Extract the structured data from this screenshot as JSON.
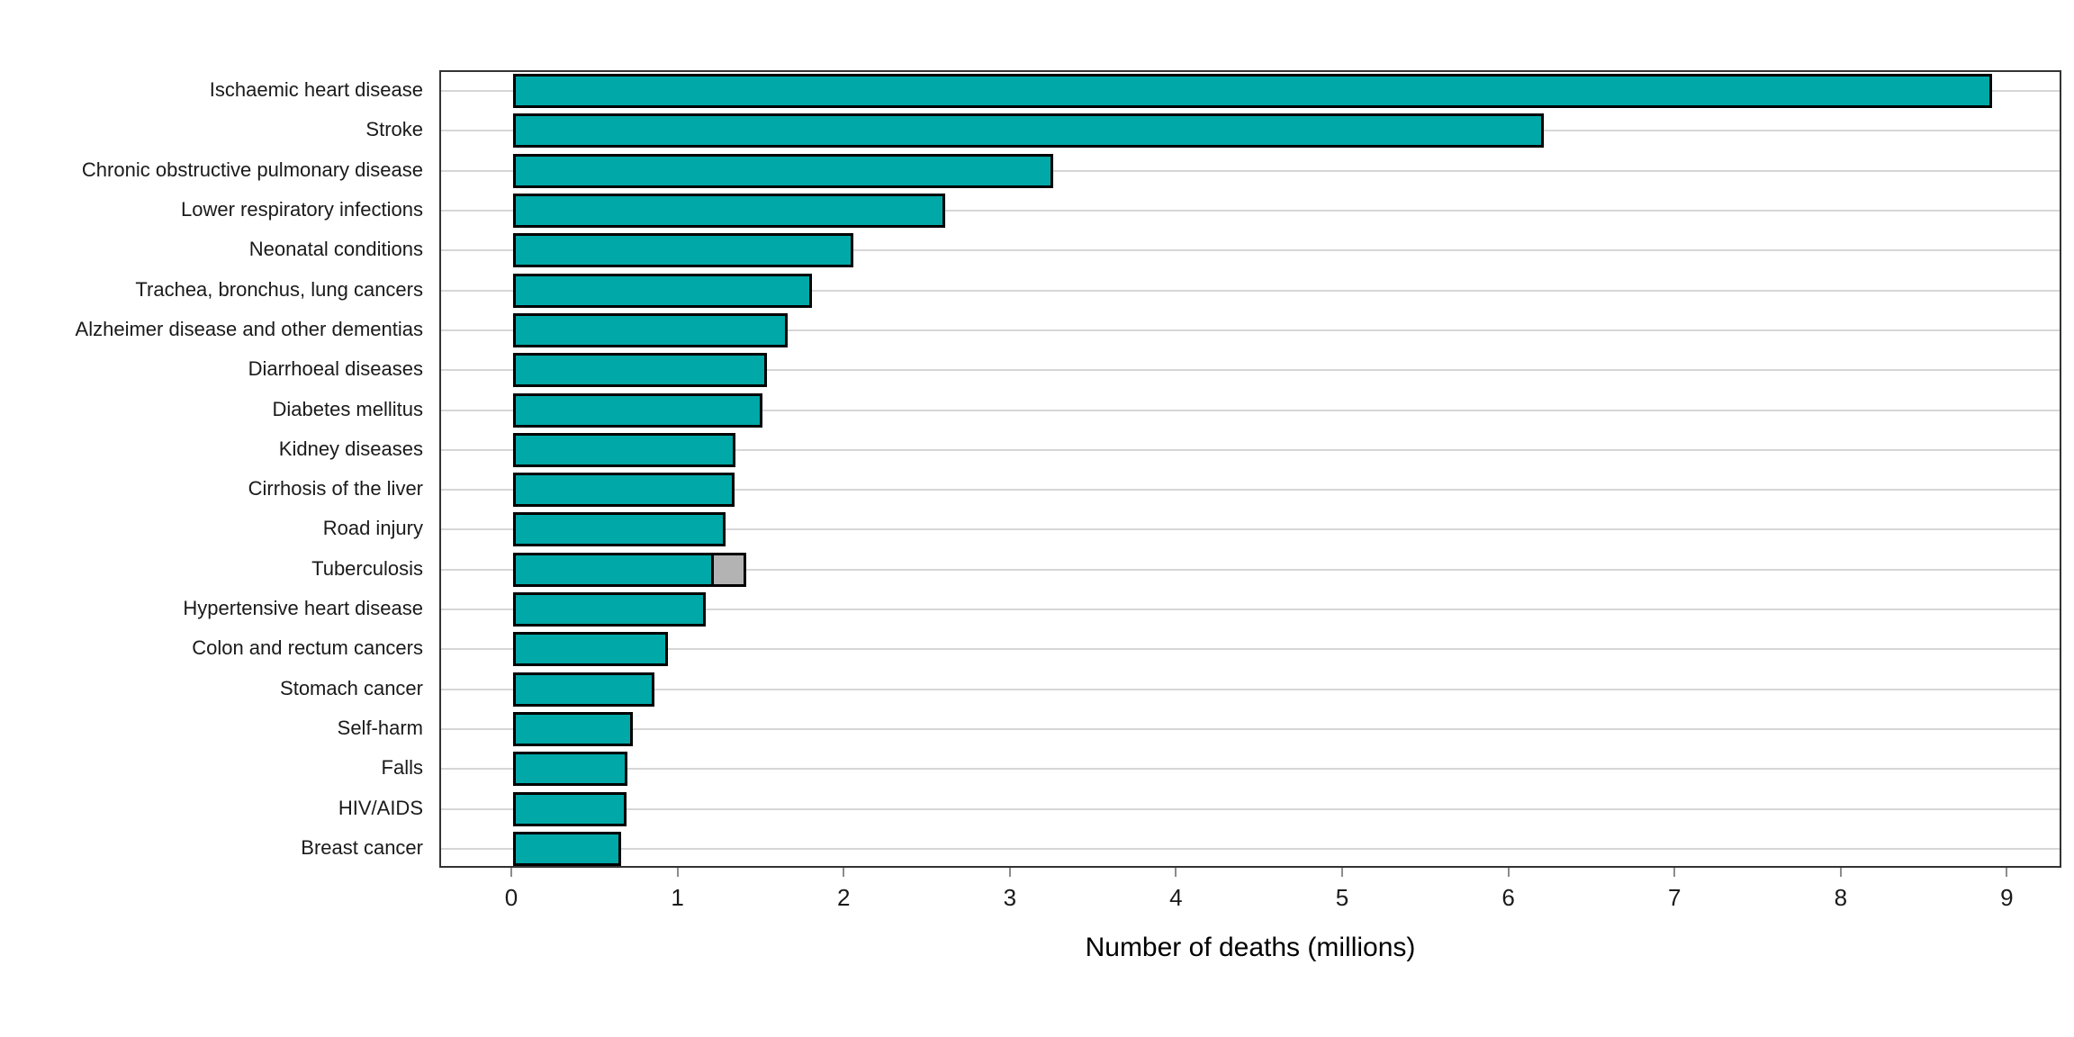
{
  "chart_data": {
    "type": "bar",
    "orientation": "horizontal",
    "title": "",
    "xlabel": "Number of deaths (millions)",
    "ylabel": "",
    "xlim": [
      0,
      9
    ],
    "x_ticks": [
      0,
      1,
      2,
      3,
      4,
      5,
      6,
      7,
      8,
      9
    ],
    "grid": "horizontal-only",
    "legend": "none",
    "categories": [
      "Ischaemic heart disease",
      "Stroke",
      "Chronic obstructive pulmonary disease",
      "Lower respiratory infections",
      "Neonatal conditions",
      "Trachea, bronchus, lung cancers",
      "Alzheimer disease and other dementias",
      "Diarrhoeal diseases",
      "Diabetes mellitus",
      "Kidney diseases",
      "Cirrhosis of the liver",
      "Road injury",
      "Tuberculosis",
      "Hypertensive heart disease",
      "Colon and rectum cancers",
      "Stomach cancer",
      "Self-harm",
      "Falls",
      "HIV/AIDS",
      "Breast cancer"
    ],
    "series": [
      {
        "name": "deaths-primary-segment",
        "color": "#00a8a8",
        "values": [
          8.9,
          6.2,
          3.25,
          2.6,
          2.05,
          1.8,
          1.65,
          1.53,
          1.5,
          1.34,
          1.33,
          1.28,
          1.21,
          1.16,
          0.93,
          0.85,
          0.72,
          0.69,
          0.68,
          0.65
        ]
      },
      {
        "name": "deaths-secondary-grey-segment",
        "color": "#b3b3b3",
        "values": [
          0,
          0,
          0,
          0,
          0,
          0,
          0,
          0,
          0,
          0,
          0,
          0,
          0.21,
          0,
          0,
          0,
          0,
          0,
          0,
          0
        ]
      }
    ]
  },
  "colors": {
    "bar_fill": "#00a8a8",
    "bar_secondary_fill": "#b3b3b3",
    "bar_border": "#000000",
    "panel_border": "#333333",
    "gridline": "#d6d6d6",
    "tick": "#8c8c8c",
    "text": "#1a1a1a"
  }
}
